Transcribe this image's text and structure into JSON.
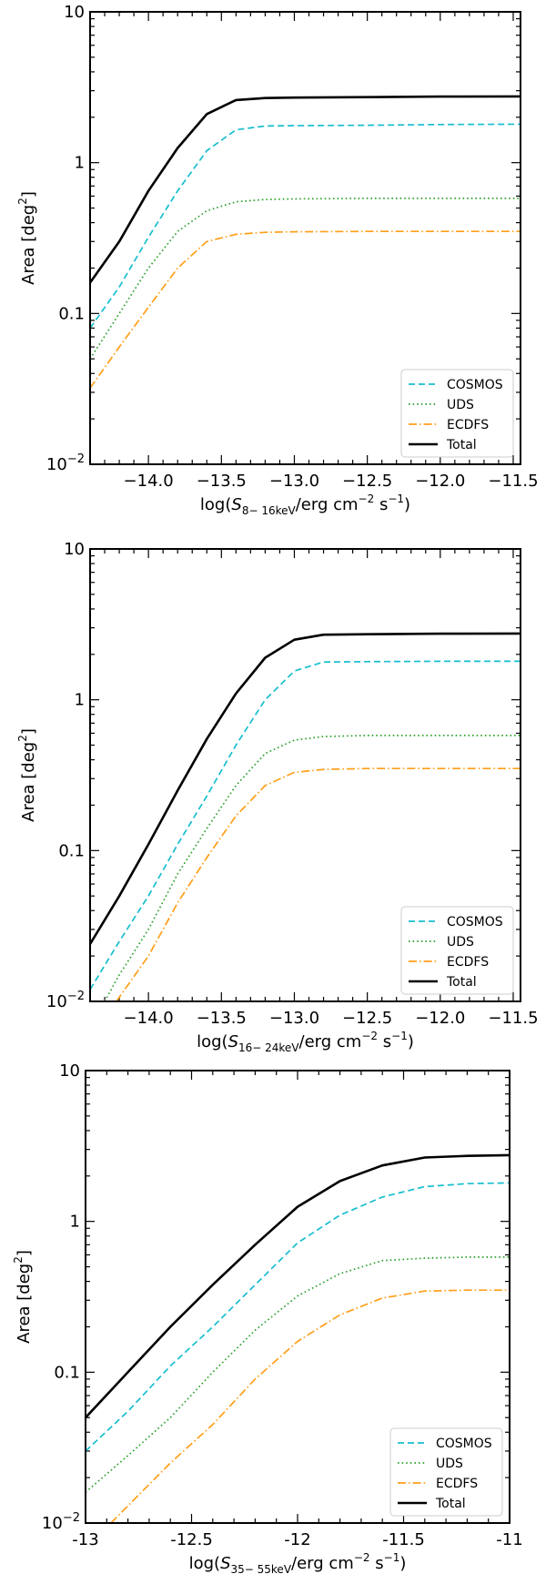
{
  "chart_data": [
    {
      "type": "line",
      "xlabel": {
        "pre": "log(",
        "sym": "S",
        "sub": "8− 16keV",
        "post": "/erg cm",
        "sup1": "−2",
        "mid": " s",
        "sup2": "−1",
        "end": ")"
      },
      "ylabel": {
        "text": "Area [deg",
        "sup": "2",
        "end": "]"
      },
      "xlim": [
        -14.4,
        -11.45
      ],
      "ylim": [
        0.01,
        10
      ],
      "yscale": "log",
      "xticks": [
        -14.0,
        -13.5,
        -13.0,
        -12.5,
        -12.0,
        -11.5
      ],
      "xtick_labels": [
        "−14.0",
        "−13.5",
        "−13.0",
        "−12.5",
        "−12.0",
        "−11.5"
      ],
      "yticks": [
        {
          "v": 10,
          "label": "10"
        },
        {
          "v": 1,
          "label": "1"
        },
        {
          "v": 0.1,
          "label": "0.1"
        },
        {
          "v": 0.01,
          "label": "10",
          "sup": "−2"
        }
      ],
      "legend": {
        "position": "bottom-right",
        "entries": [
          "COSMOS",
          "UDS",
          "ECDFS",
          "Total"
        ]
      },
      "series": [
        {
          "name": "COSMOS",
          "color": "#17becf",
          "style": "dashed",
          "x": [
            -14.4,
            -14.2,
            -14.0,
            -13.8,
            -13.6,
            -13.4,
            -13.2,
            -13.0,
            -12.5,
            -12.0,
            -11.45
          ],
          "y": [
            0.08,
            0.15,
            0.32,
            0.65,
            1.2,
            1.65,
            1.75,
            1.76,
            1.77,
            1.79,
            1.8
          ]
        },
        {
          "name": "UDS",
          "color": "#2ca02c",
          "style": "dotted",
          "x": [
            -14.4,
            -14.2,
            -14.0,
            -13.8,
            -13.6,
            -13.4,
            -13.2,
            -13.0,
            -12.5,
            -12.0,
            -11.45
          ],
          "y": [
            0.05,
            0.1,
            0.2,
            0.35,
            0.48,
            0.55,
            0.57,
            0.575,
            0.58,
            0.58,
            0.58
          ]
        },
        {
          "name": "ECDFS",
          "color": "#ff9f1a",
          "style": "dashdot",
          "x": [
            -14.4,
            -14.2,
            -14.0,
            -13.8,
            -13.6,
            -13.4,
            -13.2,
            -13.0,
            -12.5,
            -12.0,
            -11.45
          ],
          "y": [
            0.032,
            0.06,
            0.11,
            0.2,
            0.3,
            0.335,
            0.345,
            0.348,
            0.35,
            0.35,
            0.35
          ]
        },
        {
          "name": "Total",
          "color": "#000000",
          "style": "solid",
          "x": [
            -14.4,
            -14.2,
            -14.0,
            -13.8,
            -13.6,
            -13.4,
            -13.2,
            -13.0,
            -12.5,
            -12.0,
            -11.45
          ],
          "y": [
            0.16,
            0.3,
            0.65,
            1.25,
            2.1,
            2.6,
            2.68,
            2.7,
            2.72,
            2.74,
            2.75
          ]
        }
      ]
    },
    {
      "type": "line",
      "xlabel": {
        "pre": "log(",
        "sym": "S",
        "sub": "16− 24keV",
        "post": "/erg cm",
        "sup1": "−2",
        "mid": " s",
        "sup2": "−1",
        "end": ")"
      },
      "ylabel": {
        "text": "Area [deg",
        "sup": "2",
        "end": "]"
      },
      "xlim": [
        -14.4,
        -11.45
      ],
      "ylim": [
        0.01,
        10
      ],
      "yscale": "log",
      "xticks": [
        -14.0,
        -13.5,
        -13.0,
        -12.5,
        -12.0,
        -11.5
      ],
      "xtick_labels": [
        "−14.0",
        "−13.5",
        "−13.0",
        "−12.5",
        "−12.0",
        "−11.5"
      ],
      "yticks": [
        {
          "v": 10,
          "label": "10"
        },
        {
          "v": 1,
          "label": "1"
        },
        {
          "v": 0.1,
          "label": "0.1"
        },
        {
          "v": 0.01,
          "label": "10",
          "sup": "−2"
        }
      ],
      "legend": {
        "position": "bottom-right",
        "entries": [
          "COSMOS",
          "UDS",
          "ECDFS",
          "Total"
        ]
      },
      "series": [
        {
          "name": "COSMOS",
          "color": "#17becf",
          "style": "dashed",
          "x": [
            -14.4,
            -14.2,
            -14.0,
            -13.8,
            -13.6,
            -13.4,
            -13.2,
            -13.0,
            -12.8,
            -12.5,
            -12.0,
            -11.45
          ],
          "y": [
            0.012,
            0.025,
            0.05,
            0.11,
            0.23,
            0.5,
            1.0,
            1.55,
            1.78,
            1.79,
            1.8,
            1.8
          ]
        },
        {
          "name": "UDS",
          "color": "#2ca02c",
          "style": "dotted",
          "x": [
            -14.3,
            -14.2,
            -14.0,
            -13.8,
            -13.6,
            -13.4,
            -13.2,
            -13.0,
            -12.8,
            -12.5,
            -12.0,
            -11.45
          ],
          "y": [
            0.01,
            0.015,
            0.03,
            0.07,
            0.14,
            0.27,
            0.44,
            0.54,
            0.57,
            0.58,
            0.58,
            0.58
          ]
        },
        {
          "name": "ECDFS",
          "color": "#ff9f1a",
          "style": "dashdot",
          "x": [
            -14.22,
            -14.0,
            -13.8,
            -13.6,
            -13.4,
            -13.2,
            -13.0,
            -12.8,
            -12.5,
            -12.0,
            -11.45
          ],
          "y": [
            0.01,
            0.02,
            0.045,
            0.09,
            0.17,
            0.27,
            0.33,
            0.345,
            0.35,
            0.35,
            0.35
          ]
        },
        {
          "name": "Total",
          "color": "#000000",
          "style": "solid",
          "x": [
            -14.4,
            -14.2,
            -14.0,
            -13.8,
            -13.6,
            -13.4,
            -13.2,
            -13.0,
            -12.8,
            -12.5,
            -12.0,
            -11.45
          ],
          "y": [
            0.024,
            0.05,
            0.11,
            0.25,
            0.55,
            1.1,
            1.9,
            2.5,
            2.7,
            2.72,
            2.74,
            2.75
          ]
        }
      ]
    },
    {
      "type": "line",
      "xlabel": {
        "pre": "log(",
        "sym": "S",
        "sub": "35− 55keV",
        "post": "/erg cm",
        "sup1": "−2",
        "mid": " s",
        "sup2": "−1",
        "end": ")"
      },
      "ylabel": {
        "text": "Area [deg",
        "sup": "2",
        "end": "]"
      },
      "xlim": [
        -13.0,
        -11.0
      ],
      "ylim": [
        0.01,
        10
      ],
      "yscale": "log",
      "xticks": [
        -13.0,
        -12.5,
        -12.0,
        -11.5,
        -11.0
      ],
      "xtick_labels": [
        "-13",
        "-12.5",
        "-12",
        "-11.5",
        "-11"
      ],
      "yticks": [
        {
          "v": 10,
          "label": "10"
        },
        {
          "v": 1,
          "label": "1"
        },
        {
          "v": 0.1,
          "label": "0.1"
        },
        {
          "v": 0.01,
          "label": "10",
          "sup": "−2"
        }
      ],
      "legend": {
        "position": "bottom-right",
        "entries": [
          "COSMOS",
          "UDS",
          "ECDFS",
          "Total"
        ]
      },
      "series": [
        {
          "name": "COSMOS",
          "color": "#17becf",
          "style": "dashed",
          "x": [
            -13.0,
            -12.8,
            -12.6,
            -12.4,
            -12.2,
            -12.0,
            -11.8,
            -11.6,
            -11.4,
            -11.2,
            -11.0
          ],
          "y": [
            0.03,
            0.055,
            0.11,
            0.2,
            0.38,
            0.72,
            1.1,
            1.45,
            1.7,
            1.78,
            1.8
          ]
        },
        {
          "name": "UDS",
          "color": "#2ca02c",
          "style": "dotted",
          "x": [
            -13.0,
            -12.8,
            -12.6,
            -12.4,
            -12.2,
            -12.0,
            -11.8,
            -11.6,
            -11.4,
            -11.2,
            -11.0
          ],
          "y": [
            0.016,
            0.028,
            0.05,
            0.1,
            0.19,
            0.32,
            0.45,
            0.55,
            0.57,
            0.58,
            0.58
          ]
        },
        {
          "name": "ECDFS",
          "color": "#ff9f1a",
          "style": "dashdot",
          "x": [
            -12.88,
            -12.8,
            -12.6,
            -12.4,
            -12.2,
            -12.0,
            -11.8,
            -11.6,
            -11.4,
            -11.2,
            -11.0
          ],
          "y": [
            0.01,
            0.013,
            0.025,
            0.045,
            0.09,
            0.16,
            0.24,
            0.31,
            0.345,
            0.35,
            0.35
          ]
        },
        {
          "name": "Total",
          "color": "#000000",
          "style": "solid",
          "x": [
            -13.0,
            -12.8,
            -12.6,
            -12.4,
            -12.2,
            -12.0,
            -11.8,
            -11.6,
            -11.4,
            -11.2,
            -11.0
          ],
          "y": [
            0.05,
            0.1,
            0.2,
            0.38,
            0.7,
            1.25,
            1.85,
            2.35,
            2.65,
            2.72,
            2.75
          ]
        }
      ]
    }
  ]
}
